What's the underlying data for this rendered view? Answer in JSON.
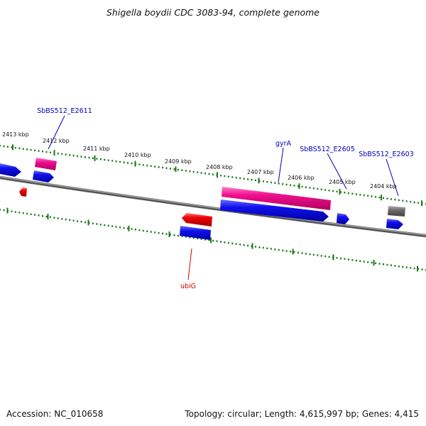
{
  "title": "Shigella boydii CDC 3083-94, complete genome",
  "footer": {
    "accession": "Accession: NC_010658",
    "summary": "Topology: circular; Length: 4,615,997 bp; Genes: 4,415"
  },
  "ticks": [
    "2413 kbp",
    "2412 kbp",
    "2411 kbp",
    "2410 kbp",
    "2409 kbp",
    "2408 kbp",
    "2407 kbp",
    "2406 kbp",
    "2405 kbp",
    "2404 kbp"
  ],
  "gene_labels": [
    "SbBS512_E2611",
    "gyrA",
    "SbBS512_E2605",
    "SbBS512_E2603",
    "ubiG"
  ],
  "colors": {
    "backbone": "#6e6e6e",
    "tick": "#1a7a1a",
    "forward_cds": "#0000ee",
    "reverse_cds": "#ee0000",
    "rna": "#e5007f",
    "pseudo": "#6a6a6a",
    "label_blue": "#0000bb",
    "label_red": "#cc0000"
  }
}
